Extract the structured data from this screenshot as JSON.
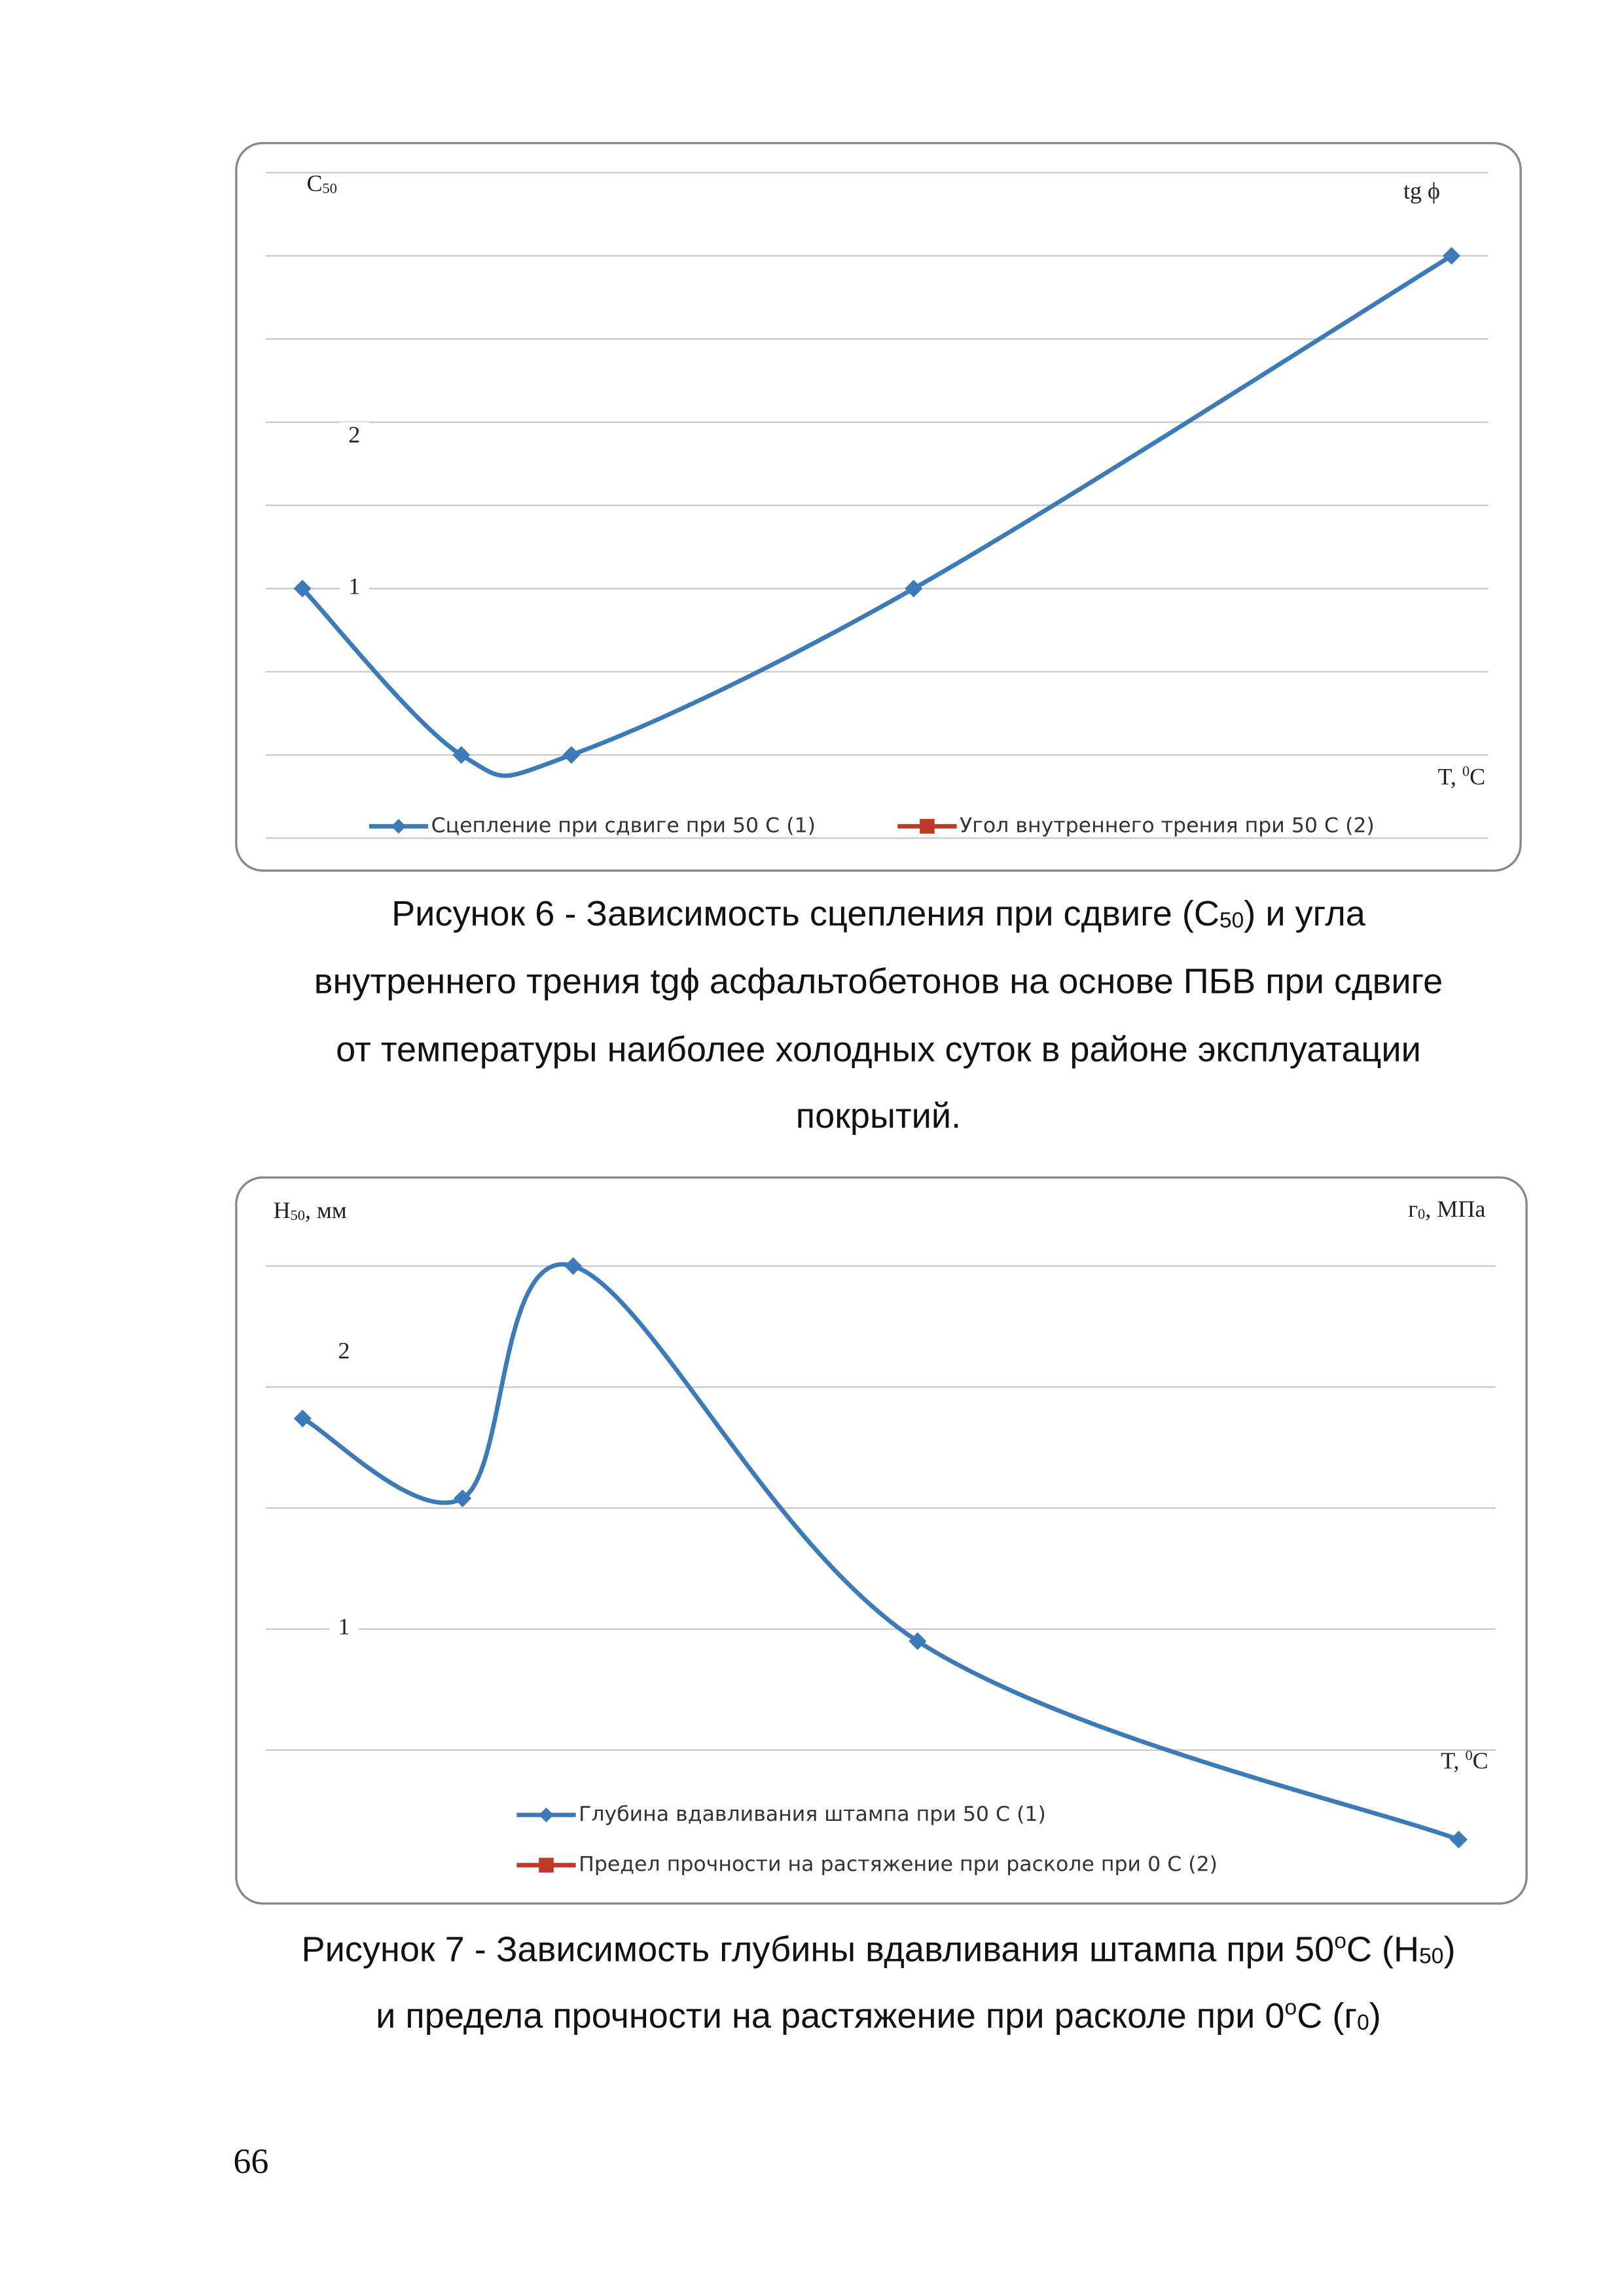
{
  "chart_data": [
    {
      "type": "line",
      "y_label": [
        "C",
        {
          "sub": "50"
        }
      ],
      "y2_label": [
        "tg ϕ"
      ],
      "x_label": [
        "T, ",
        {
          "sup": "0"
        },
        "C"
      ],
      "x": [
        3,
        16,
        25,
        53,
        97
      ],
      "xlim": [
        0,
        100
      ],
      "ylim": [
        -0.5,
        3.5
      ],
      "yticks": [
        1,
        2
      ],
      "ygrid": [
        -0.5,
        0,
        0.5,
        1,
        1.5,
        2,
        2.5,
        3,
        3.5
      ],
      "grid": true,
      "legend": "bottom",
      "series": [
        {
          "name": "Сцепление при сдвиге при 50 С (1)",
          "color": "#3c7ab8",
          "values": [
            1,
            0,
            0,
            1,
            3
          ]
        },
        {
          "name": "Угол внутреннего трения при 50 С (2)",
          "color": "#c0392b",
          "values": [
            null,
            null,
            null,
            null,
            null
          ]
        }
      ]
    },
    {
      "type": "line",
      "y_label": [
        "H",
        {
          "sub": "50"
        },
        ", мм"
      ],
      "y2_label": [
        "г",
        {
          "sub": "0"
        },
        ", МПа"
      ],
      "x_label": [
        "T, ",
        {
          "sup": "0"
        },
        "C"
      ],
      "x": [
        3,
        16,
        25,
        53,
        97
      ],
      "xlim": [
        0,
        100
      ],
      "ylim": [
        0,
        2.5
      ],
      "yticks": [
        1,
        2
      ],
      "ygrid": [
        0.5,
        1,
        1.5,
        2,
        2.5
      ],
      "grid": true,
      "legend": "bottom",
      "series": [
        {
          "name": "Глубина вдавливания штампа при 50 С (1)",
          "color": "#3c7ab8",
          "values": [
            1.87,
            1.54,
            2.5,
            0.95,
            0.13
          ]
        },
        {
          "name": "Предел прочности на растяжение при расколе при 0 С (2)",
          "color": "#c0392b",
          "values": [
            null,
            null,
            null,
            null,
            null
          ]
        }
      ]
    }
  ],
  "captions": [
    [
      [
        "Рисунок 6 - Зависимость сцепления при сдвиге (C",
        {
          "sub": "50"
        },
        ") и угла"
      ],
      [
        "внутреннего трения  tgϕ  асфальтобетонов на основе ПБВ при сдвиге"
      ],
      [
        "от температуры наиболее холодных суток в районе эксплуатации"
      ],
      [
        "покрытий."
      ]
    ],
    [
      [
        "Рисунок 7 - Зависимость глубины вдавливания штампа при 50",
        {
          "sup": "o"
        },
        "C (H",
        {
          "sub": "50"
        },
        ")"
      ],
      [
        "и предела прочности на растяжение при расколе при 0",
        {
          "sup": "o"
        },
        "C (г",
        {
          "sub": "0"
        },
        ")"
      ]
    ]
  ],
  "page_number": "66"
}
